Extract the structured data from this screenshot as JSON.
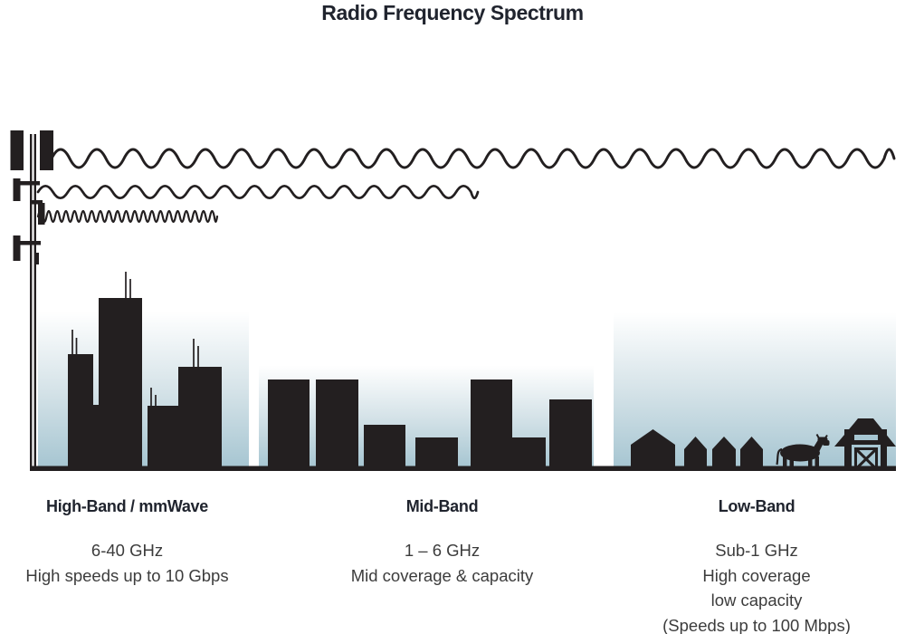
{
  "title": "Radio Frequency Spectrum",
  "bands": [
    {
      "id": "high-band",
      "label": "High-Band / mmWave",
      "lines": [
        "6-40 GHz",
        "High speeds up to 10 Gbps"
      ],
      "scene_icon": "city-skyline-icon",
      "wave_icon": "high-band-wave-icon"
    },
    {
      "id": "mid-band",
      "label": "Mid-Band",
      "lines": [
        "1 – 6 GHz",
        "Mid coverage & capacity"
      ],
      "scene_icon": "town-skyline-icon",
      "wave_icon": "mid-band-wave-icon"
    },
    {
      "id": "low-band",
      "label": "Low-Band",
      "lines": [
        "Sub-1 GHz",
        "High coverage",
        "low capacity",
        "(Speeds up to 100 Mbps)"
      ],
      "scene_icon": "farm-icon",
      "wave_icon": "low-band-wave-icon"
    }
  ],
  "icons": [
    "cell-tower-icon",
    "high-band-wave-icon",
    "mid-band-wave-icon",
    "low-band-wave-icon",
    "city-skyline-icon",
    "town-skyline-icon",
    "house-icon",
    "cow-icon",
    "barn-icon"
  ],
  "colors": {
    "silhouette": "#231f20",
    "sky_top": "#ffffff",
    "sky_mid": "#d7e4e9",
    "sky_bottom": "#a7c6d2",
    "heading_text": "#20242e",
    "body_text": "#3c3c3c"
  }
}
